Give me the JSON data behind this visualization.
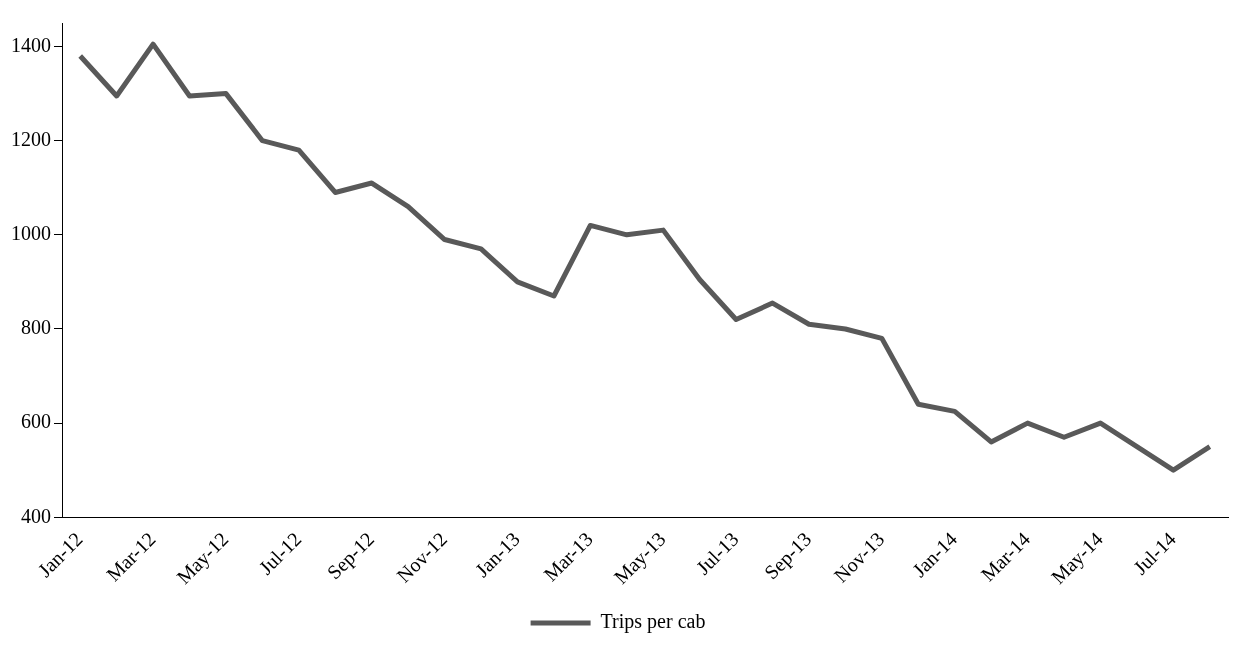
{
  "chart_data": {
    "type": "line",
    "categories": [
      "Jan-12",
      null,
      "Mar-12",
      null,
      "May-12",
      null,
      "Jul-12",
      null,
      "Sep-12",
      null,
      "Nov-12",
      null,
      "Jan-13",
      null,
      "Mar-13",
      null,
      "May-13",
      null,
      "Jul-13",
      null,
      "Sep-13",
      null,
      "Nov-13",
      null,
      "Jan-14",
      null,
      "Mar-14",
      null,
      "May-14",
      null,
      "Jul-14",
      null
    ],
    "series": [
      {
        "name": "Trips per cab",
        "color": "#595959",
        "values": [
          1380,
          1295,
          1405,
          1295,
          1300,
          1200,
          1180,
          1090,
          1110,
          1060,
          990,
          970,
          900,
          870,
          1020,
          1000,
          1010,
          905,
          820,
          855,
          810,
          800,
          780,
          640,
          625,
          560,
          600,
          570,
          600,
          550,
          500,
          550
        ]
      }
    ],
    "ylim": [
      400,
      1450
    ],
    "yticks": [
      400,
      600,
      800,
      1000,
      1200,
      1400
    ],
    "grid": false,
    "legend": "bottom",
    "marker": "none",
    "line_style": "solid"
  }
}
